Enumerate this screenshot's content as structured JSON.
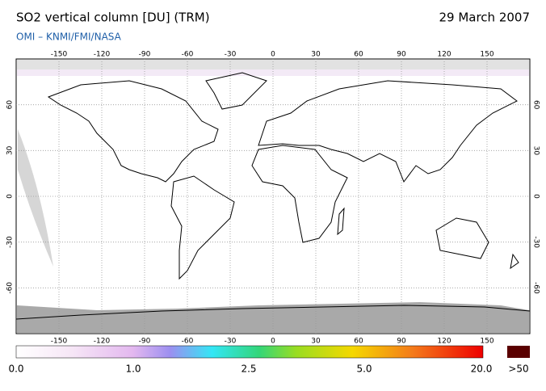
{
  "header": {
    "title": "SO2 vertical column [DU] (TRM)",
    "date": "29 March 2007",
    "source": "OMI  –  KNMI/FMI/NASA"
  },
  "map": {
    "lon_ticks": [
      -150,
      -120,
      -90,
      -60,
      -30,
      0,
      30,
      60,
      90,
      120,
      150
    ],
    "lat_ticks": [
      60,
      30,
      0,
      -30,
      -60
    ]
  },
  "colorbar": {
    "labels": [
      "0.0",
      "1.0",
      "2.5",
      "5.0",
      "20.0",
      ">50"
    ]
  }
}
